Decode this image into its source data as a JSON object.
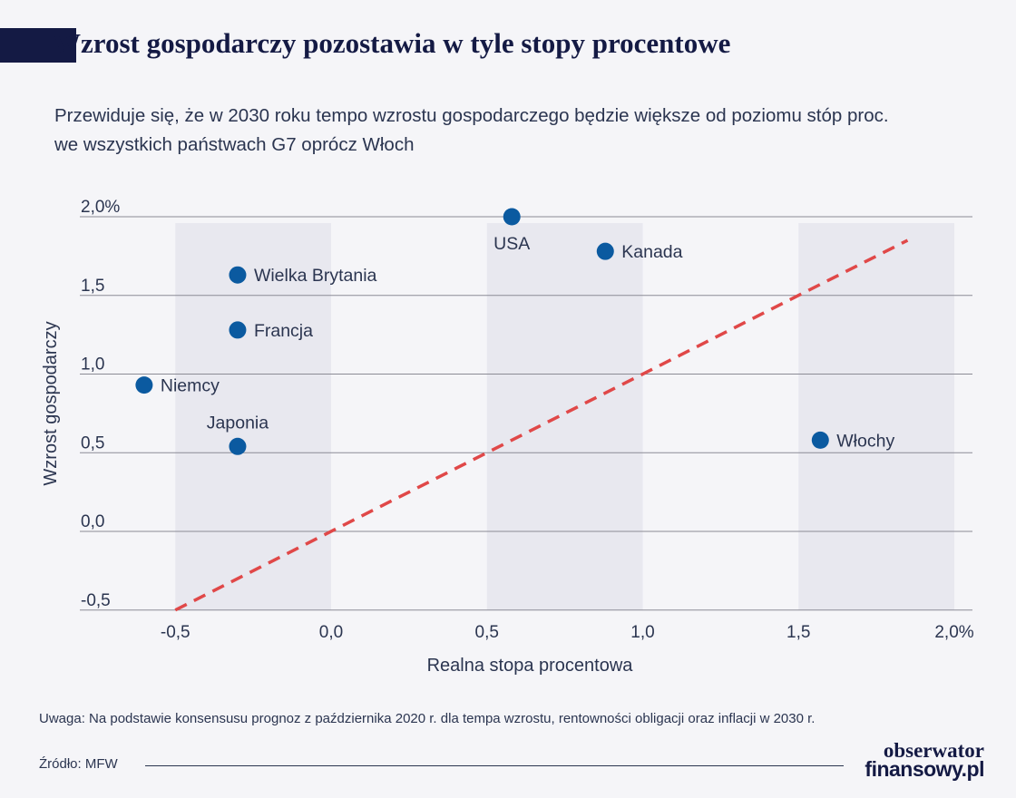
{
  "header": {
    "title": "Wzrost gospodarczy pozostawia w tyle stopy procentowe",
    "subtitle_line1": "Przewiduje się, że w 2030 roku tempo wzrostu gospodarczego będzie większe od poziomu stóp proc.",
    "subtitle_line2": "we wszystkich państwach G7 oprócz Włoch"
  },
  "chart_data": {
    "type": "scatter",
    "xlabel": "Realna stopa procentowa",
    "ylabel": "Wzrost gospodarczy",
    "xlim": [
      -0.8,
      2.1
    ],
    "ylim": [
      -0.5,
      2.0
    ],
    "x_ticks": [
      -0.5,
      0.0,
      0.5,
      1.0,
      1.5,
      2.0
    ],
    "x_tick_labels": [
      "-0,5",
      "0,0",
      "0,5",
      "1,0",
      "1,5",
      "2,0%"
    ],
    "y_ticks": [
      2.0,
      1.5,
      1.0,
      0.5,
      0.0,
      -0.5
    ],
    "y_tick_labels": [
      "2,0%",
      "1,5",
      "1,0",
      "0,5",
      "0,0",
      "-0,5"
    ],
    "shaded_x_bands": [
      [
        -0.5,
        0.0
      ],
      [
        0.5,
        1.0
      ],
      [
        1.5,
        2.0
      ]
    ],
    "reference_line": {
      "style": "dashed",
      "color": "#e04848",
      "from": [
        -0.5,
        -0.5
      ],
      "to": [
        1.85,
        1.85
      ]
    },
    "point_color": "#0b5aa0",
    "points": [
      {
        "label": "USA",
        "x": 0.58,
        "y": 2.0,
        "label_pos": "below"
      },
      {
        "label": "Kanada",
        "x": 0.88,
        "y": 1.78,
        "label_pos": "right"
      },
      {
        "label": "Wielka Brytania",
        "x": -0.3,
        "y": 1.63,
        "label_pos": "right"
      },
      {
        "label": "Francja",
        "x": -0.3,
        "y": 1.28,
        "label_pos": "right"
      },
      {
        "label": "Niemcy",
        "x": -0.6,
        "y": 0.93,
        "label_pos": "right"
      },
      {
        "label": "Japonia",
        "x": -0.3,
        "y": 0.54,
        "label_pos": "above"
      },
      {
        "label": "Włochy",
        "x": 1.57,
        "y": 0.58,
        "label_pos": "right"
      }
    ]
  },
  "footer": {
    "note": "Uwaga: Na podstawie konsensusu prognoz z października 2020 r. dla tempa wzrostu, rentowności obligacji oraz inflacji w 2030 r.",
    "source": "Źródło: MFW",
    "logo_line1": "obserwator",
    "logo_line2": "finansowy.pl"
  }
}
